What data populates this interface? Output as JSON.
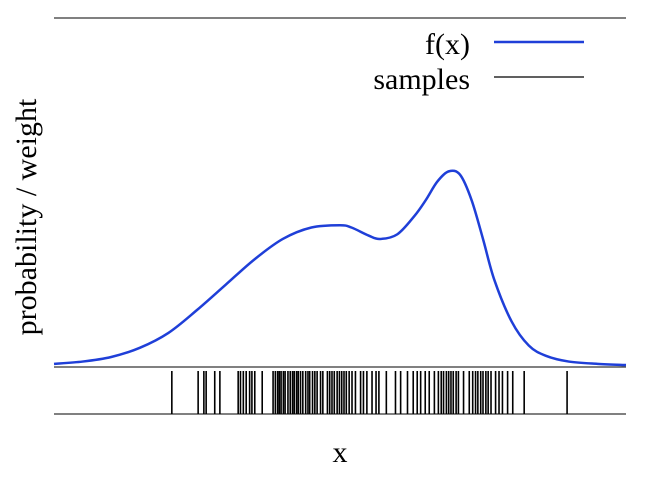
{
  "chart_data": {
    "type": "line",
    "xlabel": "x",
    "ylabel": "probability / weight",
    "grid": false,
    "legend_position": "top-right",
    "colors": {
      "density": "#1f3fd8",
      "samples": "#000000",
      "axes": "#000000"
    },
    "series": [
      {
        "name": "f(x)",
        "kind": "line",
        "x": [
          0,
          0.05,
          0.1,
          0.15,
          0.2,
          0.25,
          0.3,
          0.35,
          0.4,
          0.45,
          0.5,
          0.52,
          0.55,
          0.57,
          0.6,
          0.63,
          0.65,
          0.67,
          0.69,
          0.71,
          0.73,
          0.75,
          0.77,
          0.8,
          0.83,
          0.86,
          0.9,
          0.95,
          1.0
        ],
        "y": [
          0.005,
          0.015,
          0.035,
          0.075,
          0.14,
          0.24,
          0.35,
          0.46,
          0.55,
          0.6,
          0.61,
          0.6,
          0.565,
          0.55,
          0.57,
          0.65,
          0.72,
          0.8,
          0.845,
          0.83,
          0.72,
          0.55,
          0.37,
          0.19,
          0.085,
          0.04,
          0.015,
          0.005,
          0.0
        ]
      },
      {
        "name": "samples",
        "kind": "rug",
        "values": [
          0.206,
          0.252,
          0.262,
          0.266,
          0.281,
          0.29,
          0.322,
          0.326,
          0.331,
          0.336,
          0.342,
          0.346,
          0.351,
          0.364,
          0.383,
          0.387,
          0.391,
          0.394,
          0.397,
          0.401,
          0.404,
          0.409,
          0.413,
          0.417,
          0.42,
          0.424,
          0.427,
          0.431,
          0.435,
          0.44,
          0.444,
          0.447,
          0.452,
          0.456,
          0.46,
          0.466,
          0.47,
          0.478,
          0.482,
          0.486,
          0.49,
          0.495,
          0.499,
          0.503,
          0.507,
          0.511,
          0.516,
          0.521,
          0.527,
          0.536,
          0.541,
          0.547,
          0.556,
          0.563,
          0.568,
          0.581,
          0.597,
          0.606,
          0.618,
          0.628,
          0.635,
          0.641,
          0.649,
          0.656,
          0.665,
          0.672,
          0.677,
          0.681,
          0.686,
          0.69,
          0.694,
          0.698,
          0.703,
          0.707,
          0.716,
          0.726,
          0.732,
          0.737,
          0.741,
          0.746,
          0.75,
          0.755,
          0.759,
          0.764,
          0.772,
          0.778,
          0.784,
          0.793,
          0.802,
          0.822,
          0.897
        ]
      }
    ],
    "xlim": [
      0,
      1
    ],
    "ylim": [
      0,
      1
    ]
  }
}
